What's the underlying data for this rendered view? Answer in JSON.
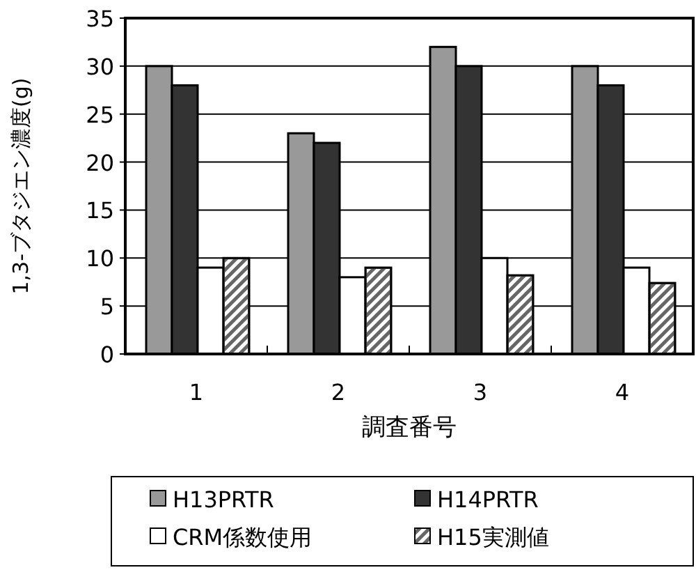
{
  "chart_data": {
    "type": "bar",
    "xlabel": "調査番号",
    "ylabel": "1,3-ブタジエン濃度(g)",
    "categories": [
      "1",
      "2",
      "3",
      "4"
    ],
    "series": [
      {
        "name": "H13PRTR",
        "color": "#999999",
        "values": [
          30,
          23,
          32,
          30
        ]
      },
      {
        "name": "H14PRTR",
        "color": "#333333",
        "values": [
          28,
          22,
          30,
          28
        ]
      },
      {
        "name": "CRM係数使用",
        "color": "#ffffff",
        "values": [
          9,
          8,
          10,
          9
        ]
      },
      {
        "name": "H15実測値",
        "color": "#666666",
        "values": [
          10,
          9,
          8.2,
          7.4
        ]
      }
    ],
    "ylim": [
      0,
      35
    ],
    "yticks": [
      0,
      5,
      10,
      15,
      20,
      25,
      30,
      35
    ],
    "grid": "y",
    "legend": "bottom"
  }
}
